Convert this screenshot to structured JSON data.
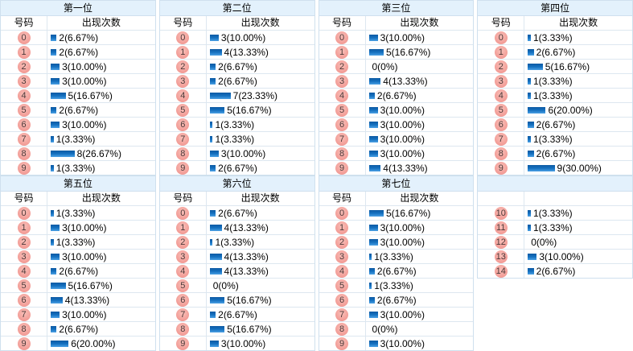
{
  "colors": {
    "header_bg": "#e3f1fc",
    "border_outer": "#cfe0ee",
    "border_row": "#dde7f0",
    "bar_top": "#0d5aa4",
    "bar_mid": "#1470bf",
    "bar_bottom": "#4ba0e4",
    "circle_light": "#f9c0b9",
    "circle_mid": "#f3a09a",
    "circle_dark": "#ec8b84"
  },
  "tables": [
    {
      "title": "第一位",
      "col_number": "号码",
      "col_count": "出现次数",
      "rows": [
        {
          "num": "0",
          "count": 2,
          "label": "2(6.67%)"
        },
        {
          "num": "1",
          "count": 2,
          "label": "2(6.67%)"
        },
        {
          "num": "2",
          "count": 3,
          "label": "3(10.00%)"
        },
        {
          "num": "3",
          "count": 3,
          "label": "3(10.00%)"
        },
        {
          "num": "4",
          "count": 5,
          "label": "5(16.67%)"
        },
        {
          "num": "5",
          "count": 2,
          "label": "2(6.67%)"
        },
        {
          "num": "6",
          "count": 3,
          "label": "3(10.00%)"
        },
        {
          "num": "7",
          "count": 1,
          "label": "1(3.33%)"
        },
        {
          "num": "8",
          "count": 8,
          "label": "8(26.67%)"
        },
        {
          "num": "9",
          "count": 1,
          "label": "1(3.33%)"
        }
      ]
    },
    {
      "title": "第二位",
      "col_number": "号码",
      "col_count": "出现次数",
      "rows": [
        {
          "num": "0",
          "count": 3,
          "label": "3(10.00%)"
        },
        {
          "num": "1",
          "count": 4,
          "label": "4(13.33%)"
        },
        {
          "num": "2",
          "count": 2,
          "label": "2(6.67%)"
        },
        {
          "num": "3",
          "count": 2,
          "label": "2(6.67%)"
        },
        {
          "num": "4",
          "count": 7,
          "label": "7(23.33%)"
        },
        {
          "num": "5",
          "count": 5,
          "label": "5(16.67%)"
        },
        {
          "num": "6",
          "count": 1,
          "label": "1(3.33%)"
        },
        {
          "num": "7",
          "count": 1,
          "label": "1(3.33%)"
        },
        {
          "num": "8",
          "count": 3,
          "label": "3(10.00%)"
        },
        {
          "num": "9",
          "count": 2,
          "label": "2(6.67%)"
        }
      ]
    },
    {
      "title": "第三位",
      "col_number": "号码",
      "col_count": "出现次数",
      "rows": [
        {
          "num": "0",
          "count": 3,
          "label": "3(10.00%)"
        },
        {
          "num": "1",
          "count": 5,
          "label": "5(16.67%)"
        },
        {
          "num": "2",
          "count": 0,
          "label": "0(0%)"
        },
        {
          "num": "3",
          "count": 4,
          "label": "4(13.33%)"
        },
        {
          "num": "4",
          "count": 2,
          "label": "2(6.67%)"
        },
        {
          "num": "5",
          "count": 3,
          "label": "3(10.00%)"
        },
        {
          "num": "6",
          "count": 3,
          "label": "3(10.00%)"
        },
        {
          "num": "7",
          "count": 3,
          "label": "3(10.00%)"
        },
        {
          "num": "8",
          "count": 3,
          "label": "3(10.00%)"
        },
        {
          "num": "9",
          "count": 4,
          "label": "4(13.33%)"
        }
      ]
    },
    {
      "title": "第四位",
      "col_number": "号码",
      "col_count": "出现次数",
      "rows": [
        {
          "num": "0",
          "count": 1,
          "label": "1(3.33%)"
        },
        {
          "num": "1",
          "count": 2,
          "label": "2(6.67%)"
        },
        {
          "num": "2",
          "count": 5,
          "label": "5(16.67%)"
        },
        {
          "num": "3",
          "count": 1,
          "label": "1(3.33%)"
        },
        {
          "num": "4",
          "count": 1,
          "label": "1(3.33%)"
        },
        {
          "num": "5",
          "count": 6,
          "label": "6(20.00%)"
        },
        {
          "num": "6",
          "count": 2,
          "label": "2(6.67%)"
        },
        {
          "num": "7",
          "count": 1,
          "label": "1(3.33%)"
        },
        {
          "num": "8",
          "count": 2,
          "label": "2(6.67%)"
        },
        {
          "num": "9",
          "count": 9,
          "label": "9(30.00%)"
        }
      ]
    },
    {
      "title": "第五位",
      "col_number": "号码",
      "col_count": "出现次数",
      "rows": [
        {
          "num": "0",
          "count": 1,
          "label": "1(3.33%)"
        },
        {
          "num": "1",
          "count": 3,
          "label": "3(10.00%)"
        },
        {
          "num": "2",
          "count": 1,
          "label": "1(3.33%)"
        },
        {
          "num": "3",
          "count": 3,
          "label": "3(10.00%)"
        },
        {
          "num": "4",
          "count": 2,
          "label": "2(6.67%)"
        },
        {
          "num": "5",
          "count": 5,
          "label": "5(16.67%)"
        },
        {
          "num": "6",
          "count": 4,
          "label": "4(13.33%)"
        },
        {
          "num": "7",
          "count": 3,
          "label": "3(10.00%)"
        },
        {
          "num": "8",
          "count": 2,
          "label": "2(6.67%)"
        },
        {
          "num": "9",
          "count": 6,
          "label": "6(20.00%)"
        }
      ]
    },
    {
      "title": "第六位",
      "col_number": "号码",
      "col_count": "出现次数",
      "rows": [
        {
          "num": "0",
          "count": 2,
          "label": "2(6.67%)"
        },
        {
          "num": "1",
          "count": 4,
          "label": "4(13.33%)"
        },
        {
          "num": "2",
          "count": 1,
          "label": "1(3.33%)"
        },
        {
          "num": "3",
          "count": 4,
          "label": "4(13.33%)"
        },
        {
          "num": "4",
          "count": 4,
          "label": "4(13.33%)"
        },
        {
          "num": "5",
          "count": 0,
          "label": "0(0%)"
        },
        {
          "num": "6",
          "count": 5,
          "label": "5(16.67%)"
        },
        {
          "num": "7",
          "count": 2,
          "label": "2(6.67%)"
        },
        {
          "num": "8",
          "count": 5,
          "label": "5(16.67%)"
        },
        {
          "num": "9",
          "count": 3,
          "label": "3(10.00%)"
        }
      ]
    },
    {
      "title": "第七位",
      "col_number": "号码",
      "col_count": "出现次数",
      "rows": [
        {
          "num": "0",
          "count": 5,
          "label": "5(16.67%)"
        },
        {
          "num": "1",
          "count": 3,
          "label": "3(10.00%)"
        },
        {
          "num": "2",
          "count": 3,
          "label": "3(10.00%)"
        },
        {
          "num": "3",
          "count": 1,
          "label": "1(3.33%)"
        },
        {
          "num": "4",
          "count": 2,
          "label": "2(6.67%)"
        },
        {
          "num": "5",
          "count": 1,
          "label": "1(3.33%)"
        },
        {
          "num": "6",
          "count": 2,
          "label": "2(6.67%)"
        },
        {
          "num": "7",
          "count": 3,
          "label": "3(10.00%)"
        },
        {
          "num": "8",
          "count": 0,
          "label": "0(0%)"
        },
        {
          "num": "9",
          "count": 3,
          "label": "3(10.00%)"
        }
      ]
    },
    {
      "title": "",
      "col_number": "",
      "col_count": "",
      "rows": [
        {
          "num": "10",
          "count": 1,
          "label": "1(3.33%)"
        },
        {
          "num": "11",
          "count": 1,
          "label": "1(3.33%)"
        },
        {
          "num": "12",
          "count": 0,
          "label": "0(0%)"
        },
        {
          "num": "13",
          "count": 3,
          "label": "3(10.00%)"
        },
        {
          "num": "14",
          "count": 2,
          "label": "2(6.67%)"
        }
      ]
    }
  ]
}
